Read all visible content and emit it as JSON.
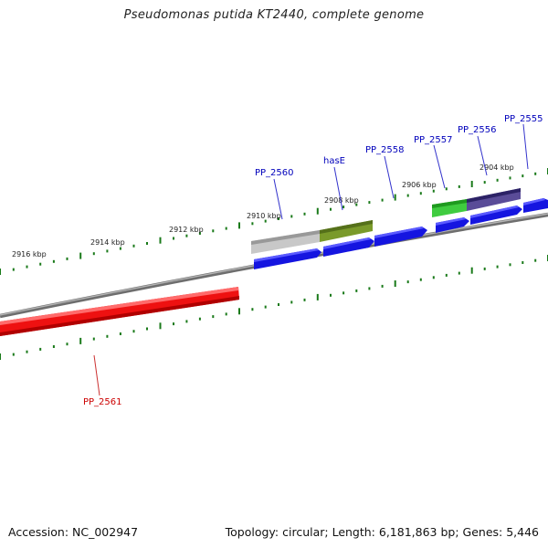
{
  "title": "Pseudomonas putida KT2440, complete genome",
  "footer": {
    "accession": "Accession: NC_002947",
    "summary": "Topology: circular; Length: 6,181,863 bp; Genes: 5,446"
  },
  "colors": {
    "backbone": "#8a8a8a",
    "forward_gene": "#1010e8",
    "reverse_gene": "#ee1111",
    "tick": "#1a7a1a",
    "label_forward": "#0000bb",
    "label_reverse": "#cc0000"
  },
  "tick_labels": [
    "2916 kbp",
    "2914 kbp",
    "2912 kbp",
    "2910 kbp",
    "2908 kbp",
    "2906 kbp",
    "2904 kbp"
  ],
  "genes": [
    {
      "name": "PP_2560",
      "strand": "forward"
    },
    {
      "name": "hasE",
      "strand": "forward"
    },
    {
      "name": "PP_2558",
      "strand": "forward"
    },
    {
      "name": "PP_2557",
      "strand": "forward"
    },
    {
      "name": "PP_2556",
      "strand": "forward"
    },
    {
      "name": "PP_2555",
      "strand": "forward"
    },
    {
      "name": "PP_2561",
      "strand": "reverse"
    }
  ],
  "features": [
    {
      "name": "gray-feature",
      "color": "#b9b9b9"
    },
    {
      "name": "olive-feature",
      "color": "#6f8f22"
    },
    {
      "name": "green-feature",
      "color": "#33bb33"
    },
    {
      "name": "purple-feature",
      "color": "#4a3c88"
    }
  ]
}
